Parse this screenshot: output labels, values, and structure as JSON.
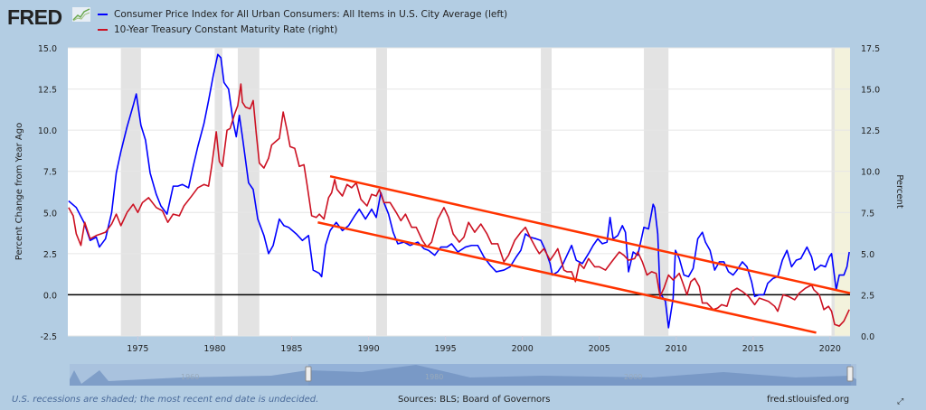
{
  "header": {
    "logo": "FRED"
  },
  "chart_data": {
    "type": "line",
    "legend_position": "top-left",
    "grid": true,
    "xlim": [
      1970.45,
      2021.3
    ],
    "x_ticks": [
      "1975",
      "1980",
      "1985",
      "1990",
      "1995",
      "2000",
      "2005",
      "2010",
      "2015",
      "2020"
    ],
    "left_axis": {
      "label": "Percent Change from Year Ago",
      "ylim": [
        -2.5,
        15
      ],
      "ticks": [
        "-2.5",
        "0.0",
        "2.5",
        "5.0",
        "7.5",
        "10.0",
        "12.5",
        "15.0"
      ]
    },
    "right_axis": {
      "label": "Percent",
      "ylim": [
        0,
        17.5
      ],
      "ticks": [
        "0.0",
        "2.5",
        "5.0",
        "7.5",
        "10.0",
        "12.5",
        "15.0",
        "17.5"
      ]
    },
    "recessions": [
      [
        1973.9,
        1975.2
      ],
      [
        1980.0,
        1980.5
      ],
      [
        1981.5,
        1982.9
      ],
      [
        1990.5,
        1991.2
      ],
      [
        2001.2,
        2001.9
      ],
      [
        2007.9,
        2009.5
      ],
      [
        2020.1,
        2020.3
      ]
    ],
    "undecided_recession_start": 2020.1,
    "series": [
      {
        "name": "Consumer Price Index for All Urban Consumers: All Items in U.S. City Average (left)",
        "axis": "left",
        "color": "#0000ff",
        "x": [
          1970.5,
          1971.0,
          1971.5,
          1971.9,
          1972.3,
          1972.5,
          1972.9,
          1973.3,
          1973.6,
          1973.9,
          1974.3,
          1974.7,
          1974.9,
          1975.2,
          1975.5,
          1975.8,
          1976.2,
          1976.5,
          1976.9,
          1977.3,
          1977.6,
          1977.9,
          1978.3,
          1978.6,
          1978.9,
          1979.3,
          1979.6,
          1979.9,
          1980.2,
          1980.4,
          1980.6,
          1980.9,
          1981.2,
          1981.4,
          1981.6,
          1981.8,
          1982.2,
          1982.5,
          1982.8,
          1983.2,
          1983.5,
          1983.8,
          1984.2,
          1984.5,
          1984.8,
          1985.3,
          1985.7,
          1986.1,
          1986.4,
          1986.8,
          1986.95,
          1987.2,
          1987.5,
          1987.9,
          1988.3,
          1988.7,
          1989.1,
          1989.4,
          1989.8,
          1990.2,
          1990.5,
          1990.8,
          1991.0,
          1991.3,
          1991.6,
          1991.9,
          1992.3,
          1992.7,
          1993.2,
          1993.6,
          1993.9,
          1994.3,
          1994.7,
          1995.1,
          1995.4,
          1995.8,
          1996.3,
          1996.7,
          1997.1,
          1997.5,
          1997.9,
          1998.3,
          1998.8,
          1999.2,
          1999.6,
          1999.9,
          2000.2,
          2000.5,
          2000.9,
          2001.2,
          2001.5,
          2001.8,
          2001.95,
          2002.3,
          2002.6,
          2002.9,
          2003.2,
          2003.5,
          2003.9,
          2004.3,
          2004.6,
          2004.9,
          2005.2,
          2005.5,
          2005.7,
          2005.9,
          2006.2,
          2006.5,
          2006.7,
          2006.9,
          2007.2,
          2007.5,
          2007.9,
          2008.2,
          2008.5,
          2008.6,
          2008.8,
          2008.95,
          2009.3,
          2009.5,
          2009.8,
          2009.95,
          2010.2,
          2010.5,
          2010.8,
          2011.1,
          2011.4,
          2011.7,
          2011.9,
          2012.2,
          2012.5,
          2012.8,
          2013.1,
          2013.4,
          2013.7,
          2013.95,
          2014.3,
          2014.6,
          2014.9,
          2015.1,
          2015.4,
          2015.7,
          2015.95,
          2016.3,
          2016.6,
          2016.9,
          2017.2,
          2017.5,
          2017.8,
          2018.1,
          2018.5,
          2018.8,
          2019.0,
          2019.4,
          2019.7,
          2019.95,
          2020.1,
          2020.4,
          2020.6,
          2020.9,
          2021.1,
          2021.25
        ],
        "y": [
          5.7,
          5.3,
          4.4,
          3.3,
          3.5,
          2.9,
          3.4,
          5.0,
          7.4,
          8.7,
          10.2,
          11.5,
          12.2,
          10.3,
          9.4,
          7.4,
          6.1,
          5.4,
          4.9,
          6.6,
          6.6,
          6.7,
          6.5,
          7.8,
          9.0,
          10.4,
          11.8,
          13.3,
          14.6,
          14.4,
          12.9,
          12.5,
          10.5,
          9.6,
          10.9,
          9.6,
          6.8,
          6.4,
          4.6,
          3.6,
          2.5,
          3.0,
          4.6,
          4.2,
          4.1,
          3.7,
          3.3,
          3.6,
          1.5,
          1.3,
          1.1,
          3.0,
          3.9,
          4.4,
          3.9,
          4.2,
          4.8,
          5.2,
          4.6,
          5.2,
          4.7,
          6.2,
          5.6,
          4.9,
          3.8,
          3.1,
          3.2,
          3.0,
          3.2,
          2.8,
          2.7,
          2.4,
          2.9,
          2.9,
          3.1,
          2.6,
          2.9,
          3.0,
          3.0,
          2.3,
          1.8,
          1.4,
          1.5,
          1.7,
          2.3,
          2.7,
          3.7,
          3.5,
          3.4,
          3.3,
          2.7,
          1.9,
          1.2,
          1.4,
          1.8,
          2.4,
          3.0,
          2.1,
          1.9,
          2.5,
          3.0,
          3.4,
          3.1,
          3.2,
          4.7,
          3.4,
          3.6,
          4.2,
          3.8,
          1.4,
          2.6,
          2.4,
          4.1,
          4.0,
          5.5,
          5.3,
          3.7,
          0.1,
          -0.4,
          -2.0,
          -0.2,
          2.7,
          2.2,
          1.2,
          1.1,
          1.6,
          3.4,
          3.8,
          3.2,
          2.7,
          1.5,
          2.0,
          2.0,
          1.4,
          1.2,
          1.5,
          2.0,
          1.7,
          0.8,
          -0.1,
          0.0,
          0.0,
          0.7,
          1.0,
          1.1,
          2.1,
          2.7,
          1.7,
          2.1,
          2.2,
          2.9,
          2.3,
          1.5,
          1.8,
          1.7,
          2.3,
          2.5,
          0.3,
          1.2,
          1.2,
          1.7,
          2.6
        ]
      },
      {
        "name": "10-Year Treasury Constant Maturity Rate (right)",
        "axis": "right",
        "color": "#cc1122",
        "x": [
          1970.5,
          1970.8,
          1971.0,
          1971.3,
          1971.55,
          1971.9,
          1972.3,
          1972.6,
          1972.9,
          1973.3,
          1973.6,
          1973.9,
          1974.3,
          1974.7,
          1975.0,
          1975.3,
          1975.7,
          1976.2,
          1976.6,
          1976.95,
          1977.3,
          1977.7,
          1978.0,
          1978.5,
          1978.9,
          1979.3,
          1979.6,
          1979.8,
          1980.1,
          1980.3,
          1980.5,
          1980.8,
          1981.0,
          1981.3,
          1981.5,
          1981.7,
          1981.8,
          1982.0,
          1982.3,
          1982.5,
          1982.7,
          1982.9,
          1983.2,
          1983.5,
          1983.7,
          1983.95,
          1984.2,
          1984.45,
          1984.7,
          1984.9,
          1985.2,
          1985.5,
          1985.8,
          1986.0,
          1986.3,
          1986.6,
          1986.8,
          1987.1,
          1987.4,
          1987.6,
          1987.8,
          1987.95,
          1988.3,
          1988.6,
          1988.9,
          1989.2,
          1989.5,
          1989.9,
          1990.2,
          1990.5,
          1990.7,
          1991.0,
          1991.4,
          1991.8,
          1992.1,
          1992.4,
          1992.8,
          1993.1,
          1993.5,
          1993.8,
          1994.1,
          1994.5,
          1994.9,
          1995.2,
          1995.5,
          1995.9,
          1996.2,
          1996.5,
          1996.9,
          1997.3,
          1997.7,
          1998.0,
          1998.4,
          1998.8,
          1999.1,
          1999.5,
          1999.9,
          2000.2,
          2000.5,
          2000.9,
          2001.1,
          2001.4,
          2001.8,
          2002.1,
          2002.3,
          2002.7,
          2002.9,
          2003.2,
          2003.45,
          2003.7,
          2004.0,
          2004.3,
          2004.7,
          2005.0,
          2005.4,
          2005.8,
          2006.3,
          2006.6,
          2006.9,
          2007.3,
          2007.5,
          2007.8,
          2008.1,
          2008.4,
          2008.7,
          2008.95,
          2009.2,
          2009.5,
          2009.8,
          2010.2,
          2010.4,
          2010.7,
          2010.95,
          2011.2,
          2011.5,
          2011.7,
          2012.0,
          2012.4,
          2012.7,
          2012.95,
          2013.3,
          2013.6,
          2013.95,
          2014.3,
          2014.7,
          2015.1,
          2015.4,
          2015.7,
          2016.0,
          2016.4,
          2016.6,
          2016.95,
          2017.3,
          2017.7,
          2018.0,
          2018.4,
          2018.8,
          2018.95,
          2019.3,
          2019.6,
          2019.9,
          2020.1,
          2020.3,
          2020.6,
          2020.9,
          2021.1,
          2021.25
        ],
        "y": [
          7.8,
          7.3,
          6.2,
          5.5,
          6.9,
          5.9,
          6.1,
          6.2,
          6.3,
          6.8,
          7.4,
          6.7,
          7.5,
          8.0,
          7.5,
          8.1,
          8.4,
          7.8,
          7.6,
          6.9,
          7.4,
          7.3,
          7.9,
          8.5,
          9.0,
          9.2,
          9.1,
          10.3,
          12.4,
          10.6,
          10.3,
          12.5,
          12.6,
          13.5,
          14.0,
          15.3,
          14.2,
          13.9,
          13.8,
          14.3,
          12.3,
          10.5,
          10.2,
          10.8,
          11.6,
          11.8,
          12.0,
          13.6,
          12.5,
          11.5,
          11.4,
          10.3,
          10.4,
          9.2,
          7.3,
          7.2,
          7.4,
          7.1,
          8.4,
          8.7,
          9.5,
          8.9,
          8.5,
          9.2,
          9.0,
          9.3,
          8.3,
          7.9,
          8.6,
          8.5,
          8.9,
          8.1,
          8.1,
          7.5,
          7.0,
          7.4,
          6.6,
          6.6,
          5.8,
          5.4,
          5.7,
          7.1,
          7.8,
          7.2,
          6.2,
          5.7,
          6.0,
          6.9,
          6.3,
          6.8,
          6.2,
          5.6,
          5.6,
          4.5,
          4.9,
          5.8,
          6.3,
          6.6,
          6.0,
          5.3,
          5.0,
          5.3,
          4.6,
          5.0,
          5.3,
          4.0,
          3.9,
          3.9,
          3.3,
          4.4,
          4.1,
          4.7,
          4.2,
          4.2,
          4.0,
          4.5,
          5.1,
          4.9,
          4.6,
          4.7,
          5.1,
          4.5,
          3.7,
          3.9,
          3.8,
          2.4,
          2.9,
          3.7,
          3.4,
          3.8,
          3.3,
          2.5,
          3.3,
          3.5,
          3.0,
          2.0,
          2.0,
          1.6,
          1.7,
          1.9,
          1.8,
          2.7,
          2.9,
          2.7,
          2.4,
          1.9,
          2.3,
          2.2,
          2.1,
          1.8,
          1.5,
          2.5,
          2.4,
          2.2,
          2.6,
          2.9,
          3.1,
          2.8,
          2.5,
          1.6,
          1.8,
          1.5,
          0.7,
          0.6,
          0.9,
          1.3,
          1.6
        ]
      }
    ],
    "annotations": [
      {
        "type": "trend-line",
        "color": "#ff3300",
        "axis": "right",
        "from": [
          1987.5,
          9.7
        ],
        "to": [
          2021.3,
          2.6
        ]
      },
      {
        "type": "trend-line",
        "color": "#ff3300",
        "axis": "right",
        "from": [
          1986.7,
          6.9
        ],
        "to": [
          2019.1,
          0.2
        ]
      }
    ],
    "zero_line": {
      "axis": "left",
      "value": 0
    }
  },
  "navigator": {
    "labels": [
      "1960",
      "1980",
      "2000"
    ]
  },
  "footer": {
    "note": "U.S. recessions are shaded; the most recent end date is undecided.",
    "sources": "Sources: BLS; Board of Governors",
    "site": "fred.stlouisfed.org"
  }
}
